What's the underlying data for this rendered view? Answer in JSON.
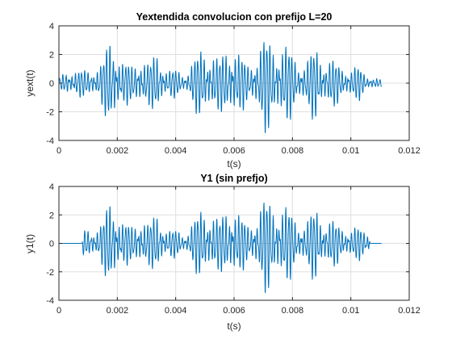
{
  "chart_data": [
    {
      "type": "line",
      "title": "Yextendida convolucion con prefijo L=20",
      "xlabel": "t(s)",
      "ylabel": "yext(t)",
      "xlim": [
        0,
        0.012
      ],
      "ylim": [
        -4,
        4
      ],
      "xticks": [
        0,
        0.002,
        0.004,
        0.006,
        0.008,
        0.01,
        0.012
      ],
      "xtick_labels": [
        "0",
        "0.002",
        "0.004",
        "0.006",
        "0.008",
        "0.01",
        "0.012"
      ],
      "yticks": [
        -4,
        -2,
        0,
        2,
        4
      ],
      "ytick_labels": [
        "-4",
        "-2",
        "0",
        "2",
        "4"
      ],
      "grid": true,
      "color": "#0072BD",
      "signal": {
        "t_end": 0.01105,
        "silent_until": 0,
        "carrier_cycles_per_ms": 9.3,
        "envelope_t": [
          0,
          0.0003,
          0.0006,
          0.0009,
          0.0012,
          0.0015,
          0.0017,
          0.0019,
          0.0022,
          0.0025,
          0.0028,
          0.0031,
          0.0034,
          0.0037,
          0.004,
          0.0043,
          0.0046,
          0.0049,
          0.0052,
          0.0055,
          0.0058,
          0.006,
          0.0062,
          0.0065,
          0.0068,
          0.0071,
          0.0073,
          0.0076,
          0.0079,
          0.0082,
          0.0085,
          0.0088,
          0.0091,
          0.0094,
          0.0097,
          0.01,
          0.0103,
          0.0106,
          0.01105
        ],
        "envelope_a": [
          0.3,
          0.9,
          1.0,
          0.8,
          1.0,
          1.6,
          2.6,
          3.0,
          1.6,
          1.1,
          2.0,
          1.4,
          2.1,
          1.0,
          0.9,
          0.6,
          1.6,
          2.3,
          2.4,
          1.6,
          2.5,
          3.0,
          1.9,
          1.2,
          2.3,
          3.2,
          2.7,
          2.8,
          2.3,
          1.5,
          1.5,
          2.6,
          1.7,
          1.5,
          1.2,
          1.0,
          1.1,
          0.5,
          0.2
        ]
      }
    },
    {
      "type": "line",
      "title": "Y1 (sin prefjo)",
      "xlabel": "t(s)",
      "ylabel": "y1(t)",
      "xlim": [
        0,
        0.012
      ],
      "ylim": [
        -4,
        4
      ],
      "xticks": [
        0,
        0.002,
        0.004,
        0.006,
        0.008,
        0.01,
        0.012
      ],
      "xtick_labels": [
        "0",
        "0.002",
        "0.004",
        "0.006",
        "0.008",
        "0.01",
        "0.012"
      ],
      "yticks": [
        -4,
        -2,
        0,
        2,
        4
      ],
      "ytick_labels": [
        "-4",
        "-2",
        "0",
        "2",
        "4"
      ],
      "grid": true,
      "color": "#0072BD",
      "signal": {
        "t_end": 0.01105,
        "silent_until": 0.0008,
        "active_until": 0.01065,
        "carrier_cycles_per_ms": 9.3,
        "envelope_t": [
          0,
          0.0008,
          0.001,
          0.0012,
          0.0015,
          0.0017,
          0.0019,
          0.0022,
          0.0025,
          0.0028,
          0.0031,
          0.0034,
          0.0037,
          0.004,
          0.0043,
          0.0046,
          0.0049,
          0.0052,
          0.0055,
          0.0058,
          0.006,
          0.0062,
          0.0065,
          0.0068,
          0.0071,
          0.0073,
          0.0076,
          0.0079,
          0.0082,
          0.0085,
          0.0088,
          0.0091,
          0.0094,
          0.0097,
          0.01,
          0.0103,
          0.01065,
          0.01105
        ],
        "envelope_a": [
          0,
          0.7,
          1.0,
          1.0,
          1.6,
          2.6,
          3.0,
          1.6,
          1.1,
          2.0,
          1.4,
          2.1,
          1.0,
          0.9,
          0.6,
          1.6,
          2.3,
          2.4,
          1.6,
          2.5,
          3.0,
          1.9,
          1.2,
          2.3,
          3.2,
          2.7,
          2.8,
          2.3,
          1.5,
          1.5,
          2.6,
          1.7,
          1.5,
          1.2,
          1.0,
          1.1,
          0.8,
          0
        ]
      }
    }
  ]
}
